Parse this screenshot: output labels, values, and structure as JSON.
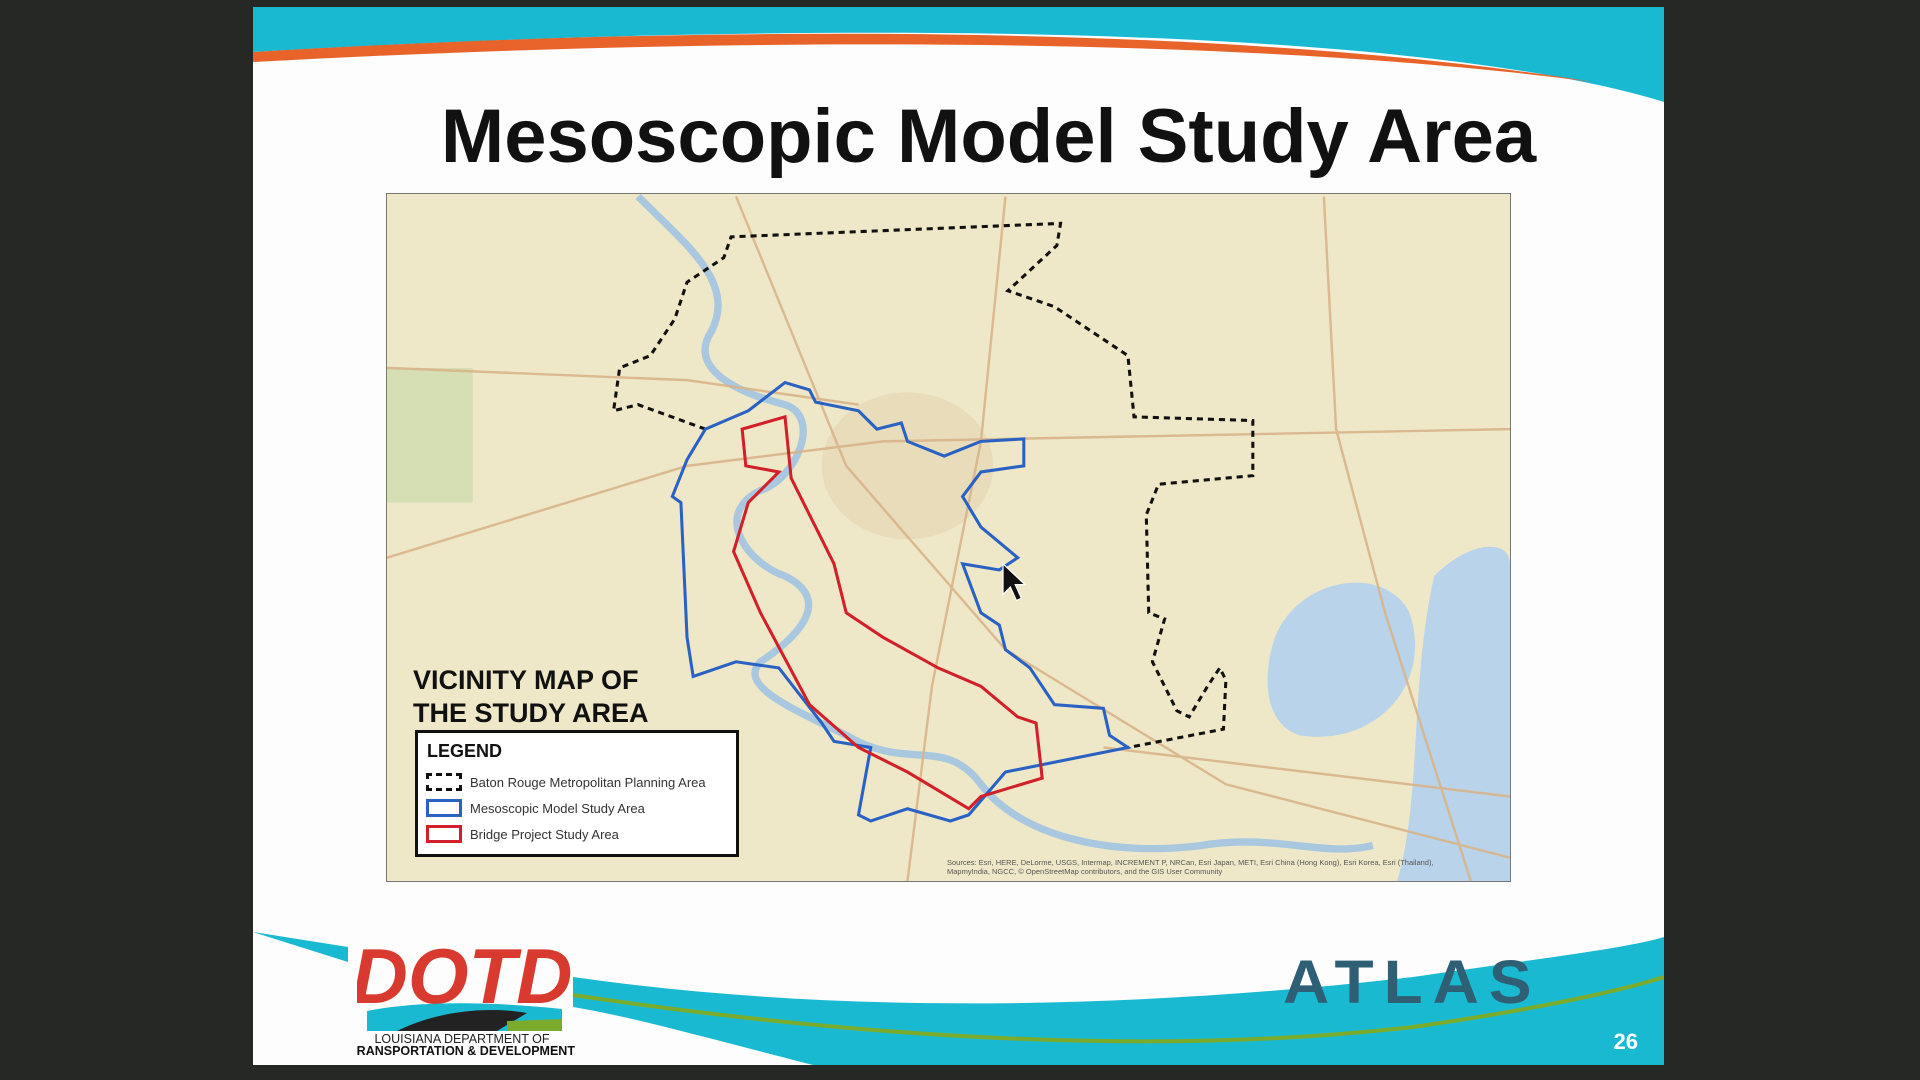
{
  "slide": {
    "title": "Mesoscopic Model Study Area",
    "page_number": "26",
    "colors": {
      "teal": "#19b9d2",
      "orange": "#e8632a",
      "green": "#7aab2c",
      "dotd_red": "#d93a2f"
    }
  },
  "map": {
    "heading_line1": "VICINITY MAP OF",
    "heading_line2": "THE STUDY AREA",
    "legend": {
      "title": "LEGEND",
      "items": [
        {
          "label": "Baton Rouge Metropolitan Planning Area",
          "color": "#111111",
          "style": "dashed"
        },
        {
          "label": "Mesoscopic Model Study Area",
          "color": "#2a62c4",
          "style": "solid"
        },
        {
          "label": "Bridge Project Study Area",
          "color": "#d2202a",
          "style": "solid"
        }
      ]
    },
    "sources_line1": "Sources: Esri, HERE, DeLorme, USGS, Intermap, INCREMENT P, NRCan, Esri Japan, METI, Esri China (Hong Kong), Esri Korea, Esri (Thailand),",
    "sources_line2": "MapmyIndia, NGCC, © OpenStreetMap contributors, and the GIS User Community"
  },
  "logos": {
    "dotd_text": "DOTD",
    "dotd_line1": "LOUISIANA DEPARTMENT OF",
    "dotd_line2": "TRANSPORTATION & DEVELOPMENT",
    "atlas_text": "ATLAS"
  },
  "cursor": {
    "icon": "arrow-pointer-icon"
  }
}
